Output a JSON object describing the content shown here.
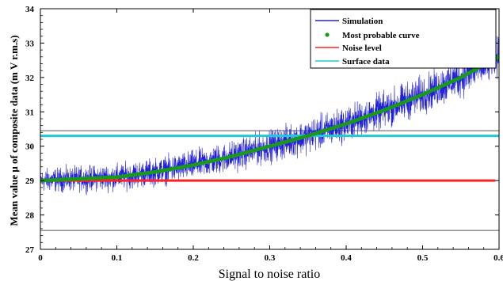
{
  "chart_data": {
    "type": "line",
    "title": "",
    "xlabel": "Signal to noise ratio",
    "ylabel": "Mean value μ of composite data (m V r.m.s)",
    "xlim": [
      0,
      0.6
    ],
    "ylim": [
      27,
      34
    ],
    "x_ticks": [
      "0",
      "0.1",
      "0.2",
      "0.3",
      "0.4",
      "0.5",
      "0.6"
    ],
    "x_tick_values": [
      0,
      0.1,
      0.2,
      0.3,
      0.4,
      0.5,
      0.6
    ],
    "y_ticks": [
      "27",
      "28",
      "29",
      "30",
      "31",
      "32",
      "33",
      "34"
    ],
    "y_tick_values": [
      27,
      28,
      29,
      30,
      31,
      32,
      33,
      34
    ],
    "grid": false,
    "legend_position": "top-right",
    "series": [
      {
        "name": "Simulation",
        "kind": "noisy-line",
        "color": "#2020d8",
        "x": [
          0,
          0.05,
          0.1,
          0.15,
          0.2,
          0.25,
          0.3,
          0.35,
          0.4,
          0.45,
          0.5,
          0.55,
          0.6
        ],
        "y": [
          29.0,
          29.05,
          29.1,
          29.25,
          29.45,
          29.7,
          30.0,
          30.3,
          30.65,
          31.05,
          31.5,
          32.0,
          32.6
        ],
        "spread": 0.6
      },
      {
        "name": "Most probable curve",
        "kind": "dotted-curve",
        "color": "#1a9a1a",
        "x": [
          0,
          0.05,
          0.1,
          0.15,
          0.2,
          0.25,
          0.3,
          0.35,
          0.4,
          0.45,
          0.5,
          0.55,
          0.6
        ],
        "y": [
          29.0,
          29.05,
          29.1,
          29.25,
          29.45,
          29.7,
          30.0,
          30.3,
          30.65,
          31.05,
          31.5,
          32.0,
          32.6
        ]
      },
      {
        "name": "Noise level",
        "kind": "hline",
        "color": "#ff2020",
        "x": [
          0,
          0.595
        ],
        "y": [
          29.0,
          29.0
        ]
      },
      {
        "name": "Surface data",
        "kind": "hline",
        "color": "#20c8d8",
        "x": [
          0,
          0.6
        ],
        "y": [
          30.3,
          30.3
        ]
      }
    ],
    "reference_lines": [
      30.45,
      27.55
    ]
  }
}
